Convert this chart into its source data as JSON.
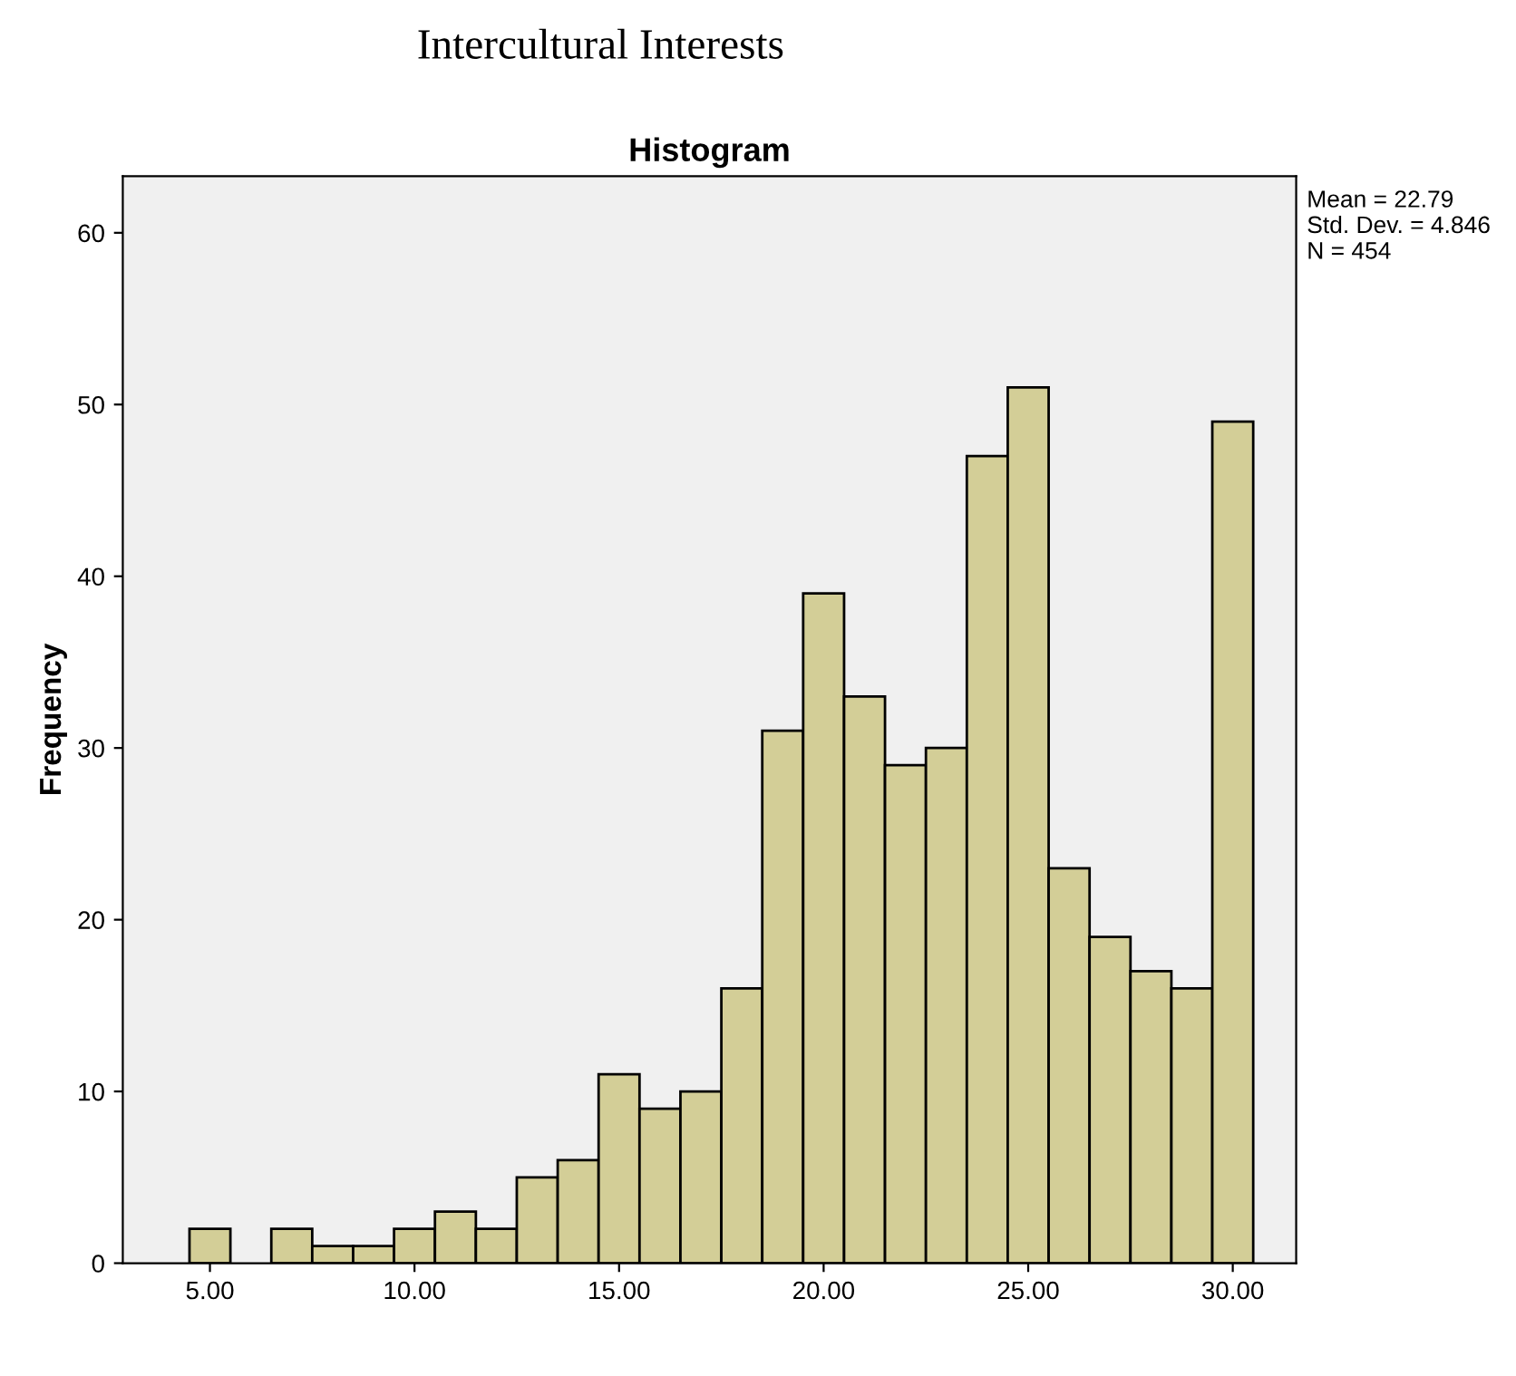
{
  "chart_data": {
    "type": "histogram",
    "title": "Histogram",
    "subtitle": "Intercultural Interests",
    "ylabel": "Frequency",
    "bins": [
      4.5,
      5.5,
      6.5,
      7.5,
      8.5,
      9.5,
      10.5,
      11.5,
      12.5,
      13.5,
      14.5,
      15.5,
      16.5,
      17.5,
      18.5,
      19.5,
      20.5,
      21.5,
      22.5,
      23.5,
      24.5,
      25.5,
      26.5,
      27.5,
      28.5,
      29.5,
      30.5
    ],
    "values": [
      2,
      0,
      2,
      1,
      1,
      2,
      3,
      2,
      5,
      6,
      11,
      9,
      10,
      16,
      31,
      39,
      33,
      29,
      30,
      47,
      51,
      23,
      19,
      17,
      16,
      49
    ],
    "color": "#d3ce97",
    "xlim": [
      2.87,
      31.55
    ],
    "ylim": [
      0,
      63.3
    ],
    "xticks": [
      {
        "value": 5,
        "label": "5.00"
      },
      {
        "value": 10,
        "label": "10.00"
      },
      {
        "value": 15,
        "label": "15.00"
      },
      {
        "value": 20,
        "label": "20.00"
      },
      {
        "value": 25,
        "label": "25.00"
      },
      {
        "value": 30,
        "label": "30.00"
      }
    ],
    "yticks": [
      0,
      10,
      20,
      30,
      40,
      50,
      60
    ],
    "grid": false,
    "legend": false,
    "annotations": [
      "Mean = 22.79\nStd. Dev. = 4.846\nN = 454"
    ]
  }
}
